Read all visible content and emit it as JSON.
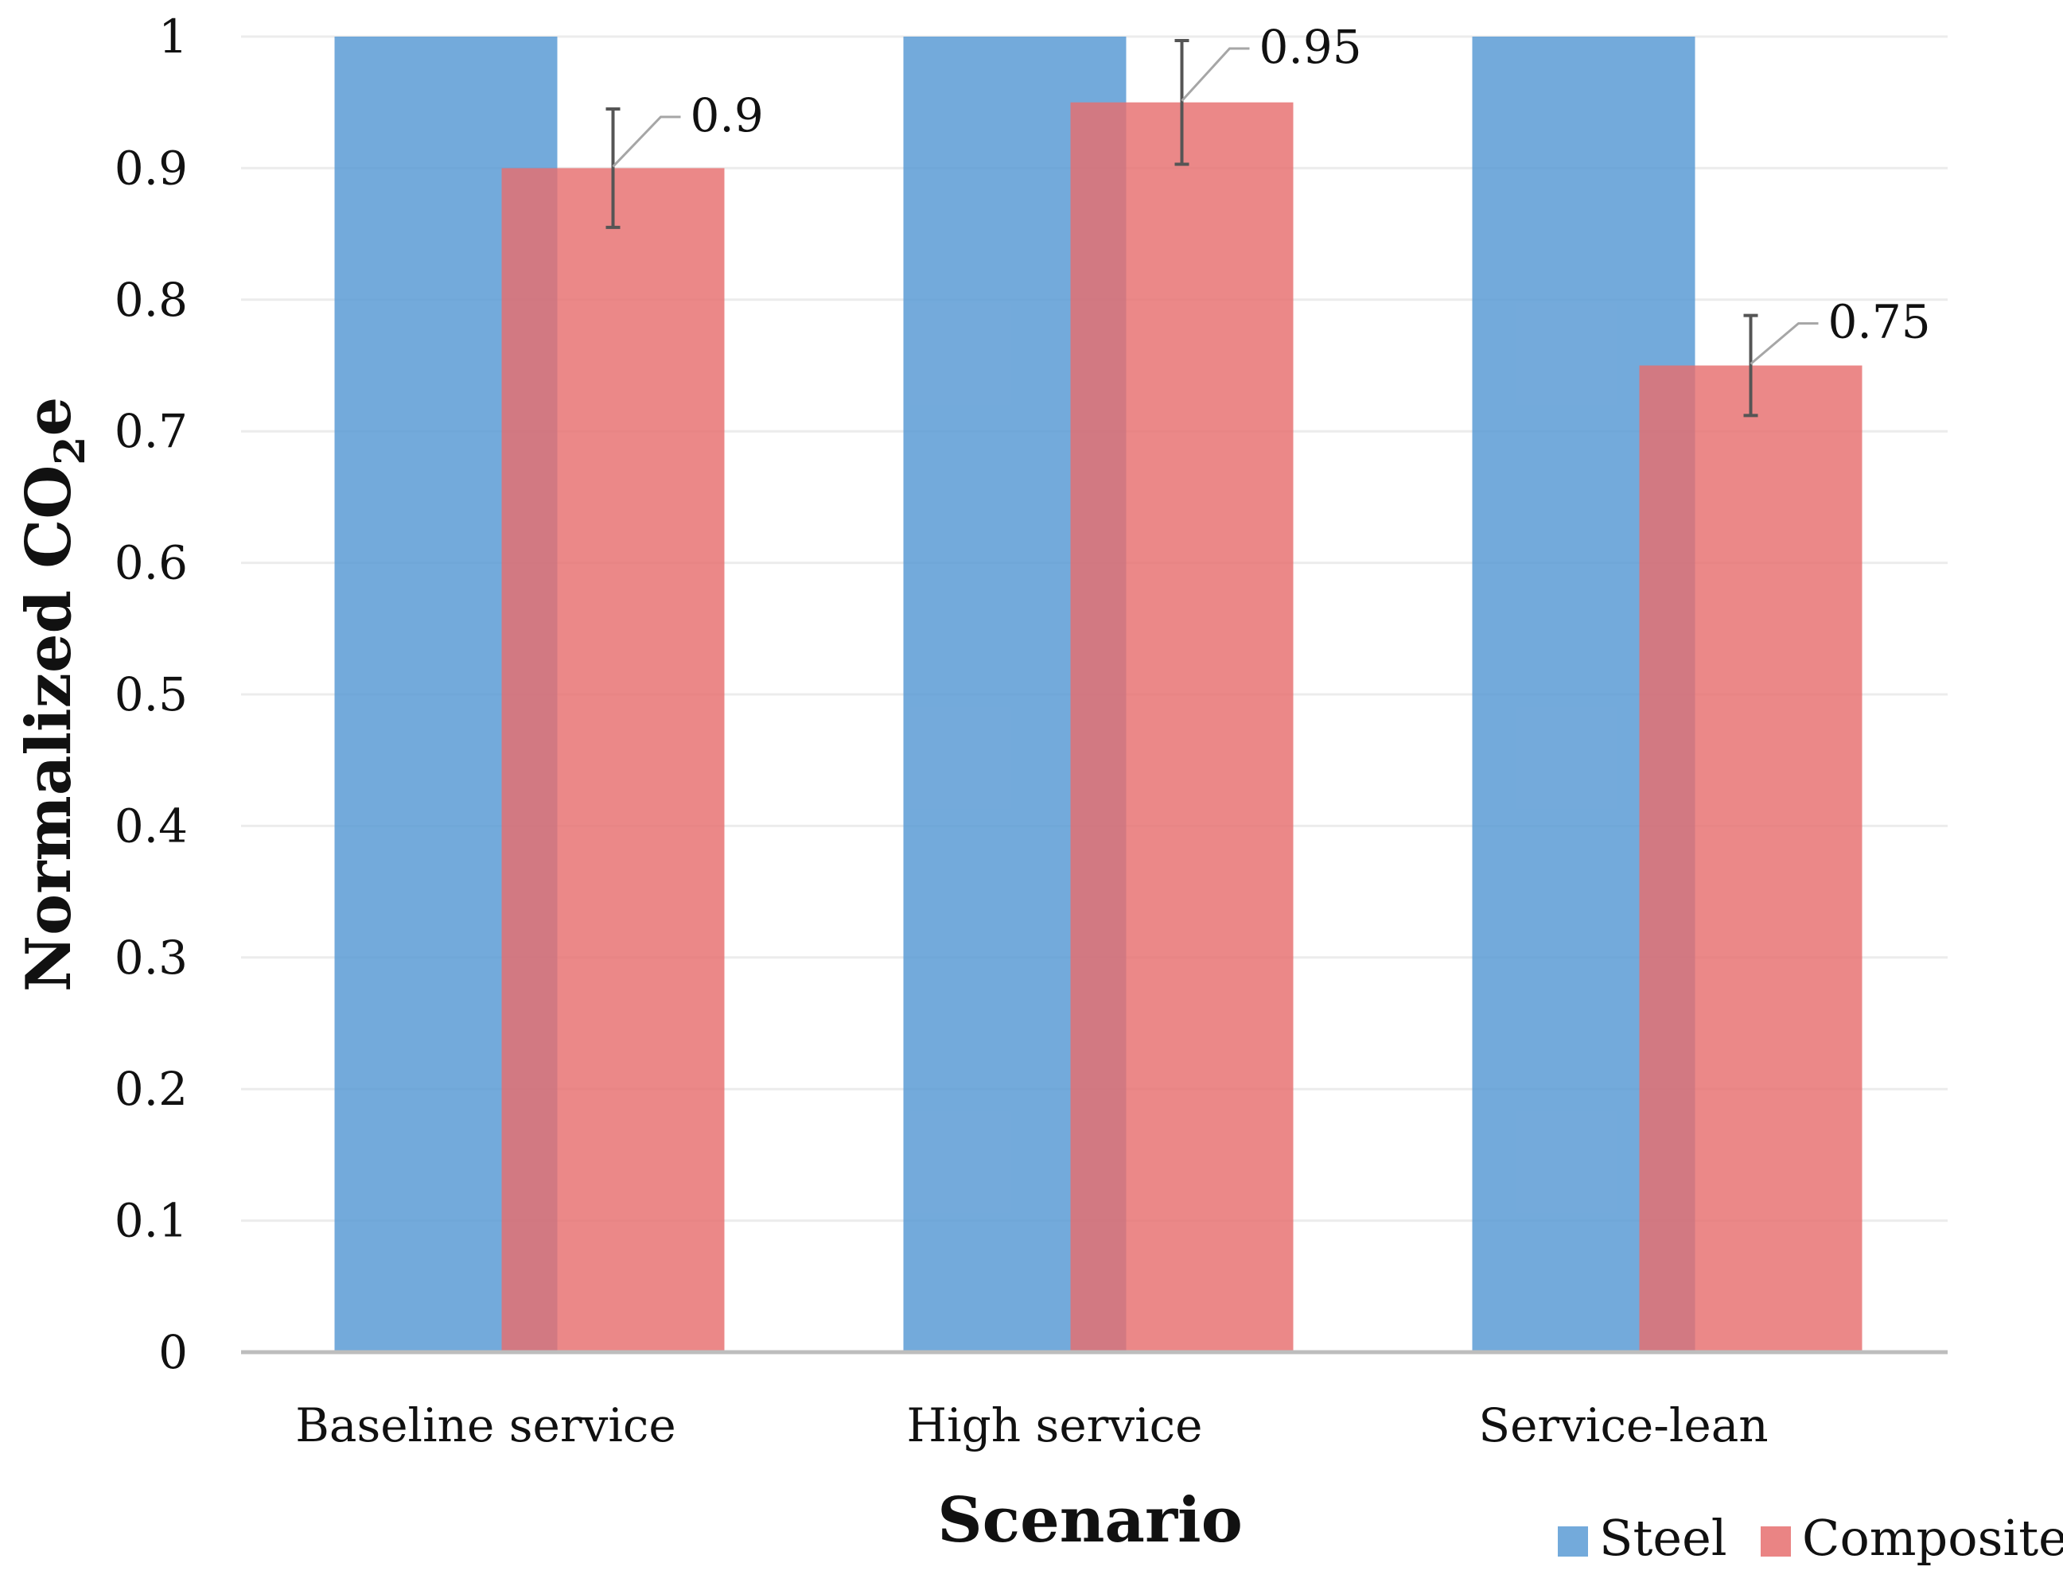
{
  "chart_data": {
    "type": "bar",
    "title": "",
    "xlabel": "Scenario",
    "ylabel_main": "Normalized CO",
    "ylabel_sub": "2",
    "ylabel_tail": "e",
    "ylim": [
      0,
      1
    ],
    "yticks": [
      "0",
      "0.1",
      "0.2",
      "0.3",
      "0.4",
      "0.5",
      "0.6",
      "0.7",
      "0.8",
      "0.9",
      "1"
    ],
    "categories": [
      "Baseline service",
      "High service",
      "Service-lean"
    ],
    "series": [
      {
        "name": "Steel",
        "color": "#5b9bd5",
        "values": [
          1,
          1,
          1
        ]
      },
      {
        "name": "Composite",
        "color": "#e66e6e",
        "values": [
          0.9,
          0.95,
          0.75
        ],
        "data_labels": [
          "0.9",
          "0.95",
          "0.75"
        ],
        "error": [
          0.045,
          0.047,
          0.038
        ]
      }
    ],
    "legend_position": "bottom-right",
    "grid": true
  }
}
